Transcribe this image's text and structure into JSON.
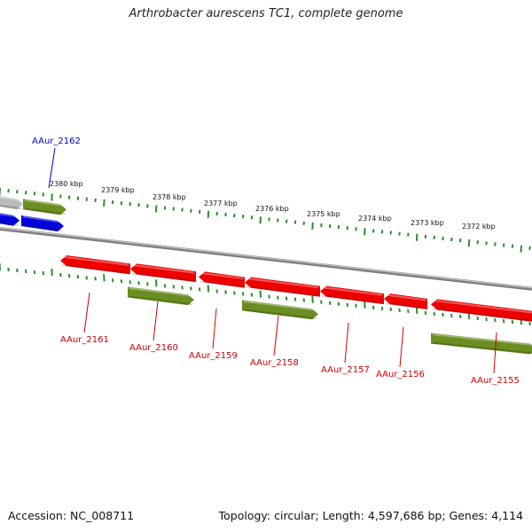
{
  "title": "Arthrobacter aurescens TC1, complete genome",
  "footer": {
    "accession": "Accession: NC_008711",
    "topology": "Topology: circular; Length: 4,597,686 bp; Genes: 4,114"
  },
  "colors": {
    "forward_gene": "#0000dd",
    "reverse_gene": "#ee0000",
    "rna_or_feature": "#6b8e23",
    "other_feature": "#bbbbbb",
    "backbone": "#808080",
    "tick": "#2e8b2e"
  },
  "ruler_labels": [
    "2380 kbp",
    "2379 kbp",
    "2378 kbp",
    "2377 kbp",
    "2376 kbp",
    "2375 kbp",
    "2374 kbp",
    "2373 kbp",
    "2372 kbp"
  ],
  "gene_labels": [
    {
      "name": "AAur_2162",
      "color": "#0000cc"
    },
    {
      "name": "AAur_2161",
      "color": "#cc0000"
    },
    {
      "name": "AAur_2160",
      "color": "#cc0000"
    },
    {
      "name": "AAur_2159",
      "color": "#cc0000"
    },
    {
      "name": "AAur_2158",
      "color": "#cc0000"
    },
    {
      "name": "AAur_2157",
      "color": "#cc0000"
    },
    {
      "name": "AAur_2156",
      "color": "#cc0000"
    },
    {
      "name": "AAur_2155",
      "color": "#cc0000"
    }
  ]
}
